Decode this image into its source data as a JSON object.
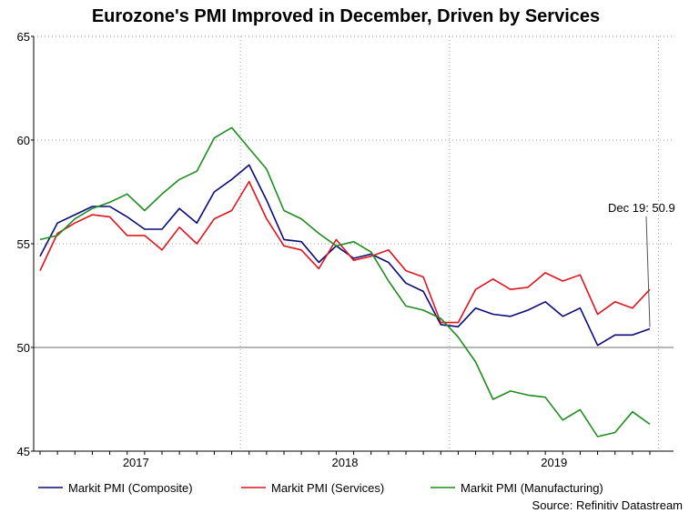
{
  "chart_data": {
    "type": "line",
    "title": "Eurozone's PMI Improved in December, Driven by Services",
    "xlabel": "",
    "ylabel": "",
    "ylim": [
      45,
      65
    ],
    "y_ticks": [
      "45",
      "50",
      "55",
      "60",
      "65"
    ],
    "x_tick_labels": [
      "2017",
      "2018",
      "2019"
    ],
    "reference_line": 50,
    "x": [
      "Jan 17",
      "Feb 17",
      "Mar 17",
      "Apr 17",
      "May 17",
      "Jun 17",
      "Jul 17",
      "Aug 17",
      "Sep 17",
      "Oct 17",
      "Nov 17",
      "Dec 17",
      "Jan 18",
      "Feb 18",
      "Mar 18",
      "Apr 18",
      "May 18",
      "Jun 18",
      "Jul 18",
      "Aug 18",
      "Sep 18",
      "Oct 18",
      "Nov 18",
      "Dec 18",
      "Jan 19",
      "Feb 19",
      "Mar 19",
      "Apr 19",
      "May 19",
      "Jun 19",
      "Jul 19",
      "Aug 19",
      "Sep 19",
      "Oct 19",
      "Nov 19",
      "Dec 19"
    ],
    "series": [
      {
        "name": "Markit PMI (Composite)",
        "color": "#0a0a78",
        "values": [
          54.4,
          56.0,
          56.4,
          56.8,
          56.8,
          56.3,
          55.7,
          55.7,
          56.7,
          56.0,
          57.5,
          58.1,
          58.8,
          57.1,
          55.2,
          55.1,
          54.1,
          54.9,
          54.3,
          54.5,
          54.1,
          53.1,
          52.7,
          51.1,
          51.0,
          51.9,
          51.6,
          51.5,
          51.8,
          52.2,
          51.5,
          51.9,
          50.1,
          50.6,
          50.6,
          50.9
        ]
      },
      {
        "name": "Markit PMI (Services)",
        "color": "#e0141e",
        "values": [
          53.7,
          55.5,
          56.0,
          56.4,
          56.3,
          55.4,
          55.4,
          54.7,
          55.8,
          55.0,
          56.2,
          56.6,
          58.0,
          56.2,
          54.9,
          54.7,
          53.8,
          55.2,
          54.2,
          54.4,
          54.7,
          53.7,
          53.4,
          51.2,
          51.2,
          52.8,
          53.3,
          52.8,
          52.9,
          53.6,
          53.2,
          53.5,
          51.6,
          52.2,
          51.9,
          52.8
        ]
      },
      {
        "name": "Markit PMI (Manufacturing)",
        "color": "#1e8c1e",
        "values": [
          55.2,
          55.4,
          56.2,
          56.7,
          57.0,
          57.4,
          56.6,
          57.4,
          58.1,
          58.5,
          60.1,
          60.6,
          59.6,
          58.6,
          56.6,
          56.2,
          55.5,
          54.9,
          55.1,
          54.6,
          53.2,
          52.0,
          51.8,
          51.4,
          50.5,
          49.3,
          47.5,
          47.9,
          47.7,
          47.6,
          46.5,
          47.0,
          45.7,
          45.9,
          46.9,
          46.3
        ]
      }
    ],
    "annotation": {
      "text": "Dec 19: 50.9",
      "series": "Markit PMI (Composite)",
      "index": 35
    },
    "legend": {
      "position": "bottom"
    },
    "source": "Source: Refinitiv Datastream"
  }
}
